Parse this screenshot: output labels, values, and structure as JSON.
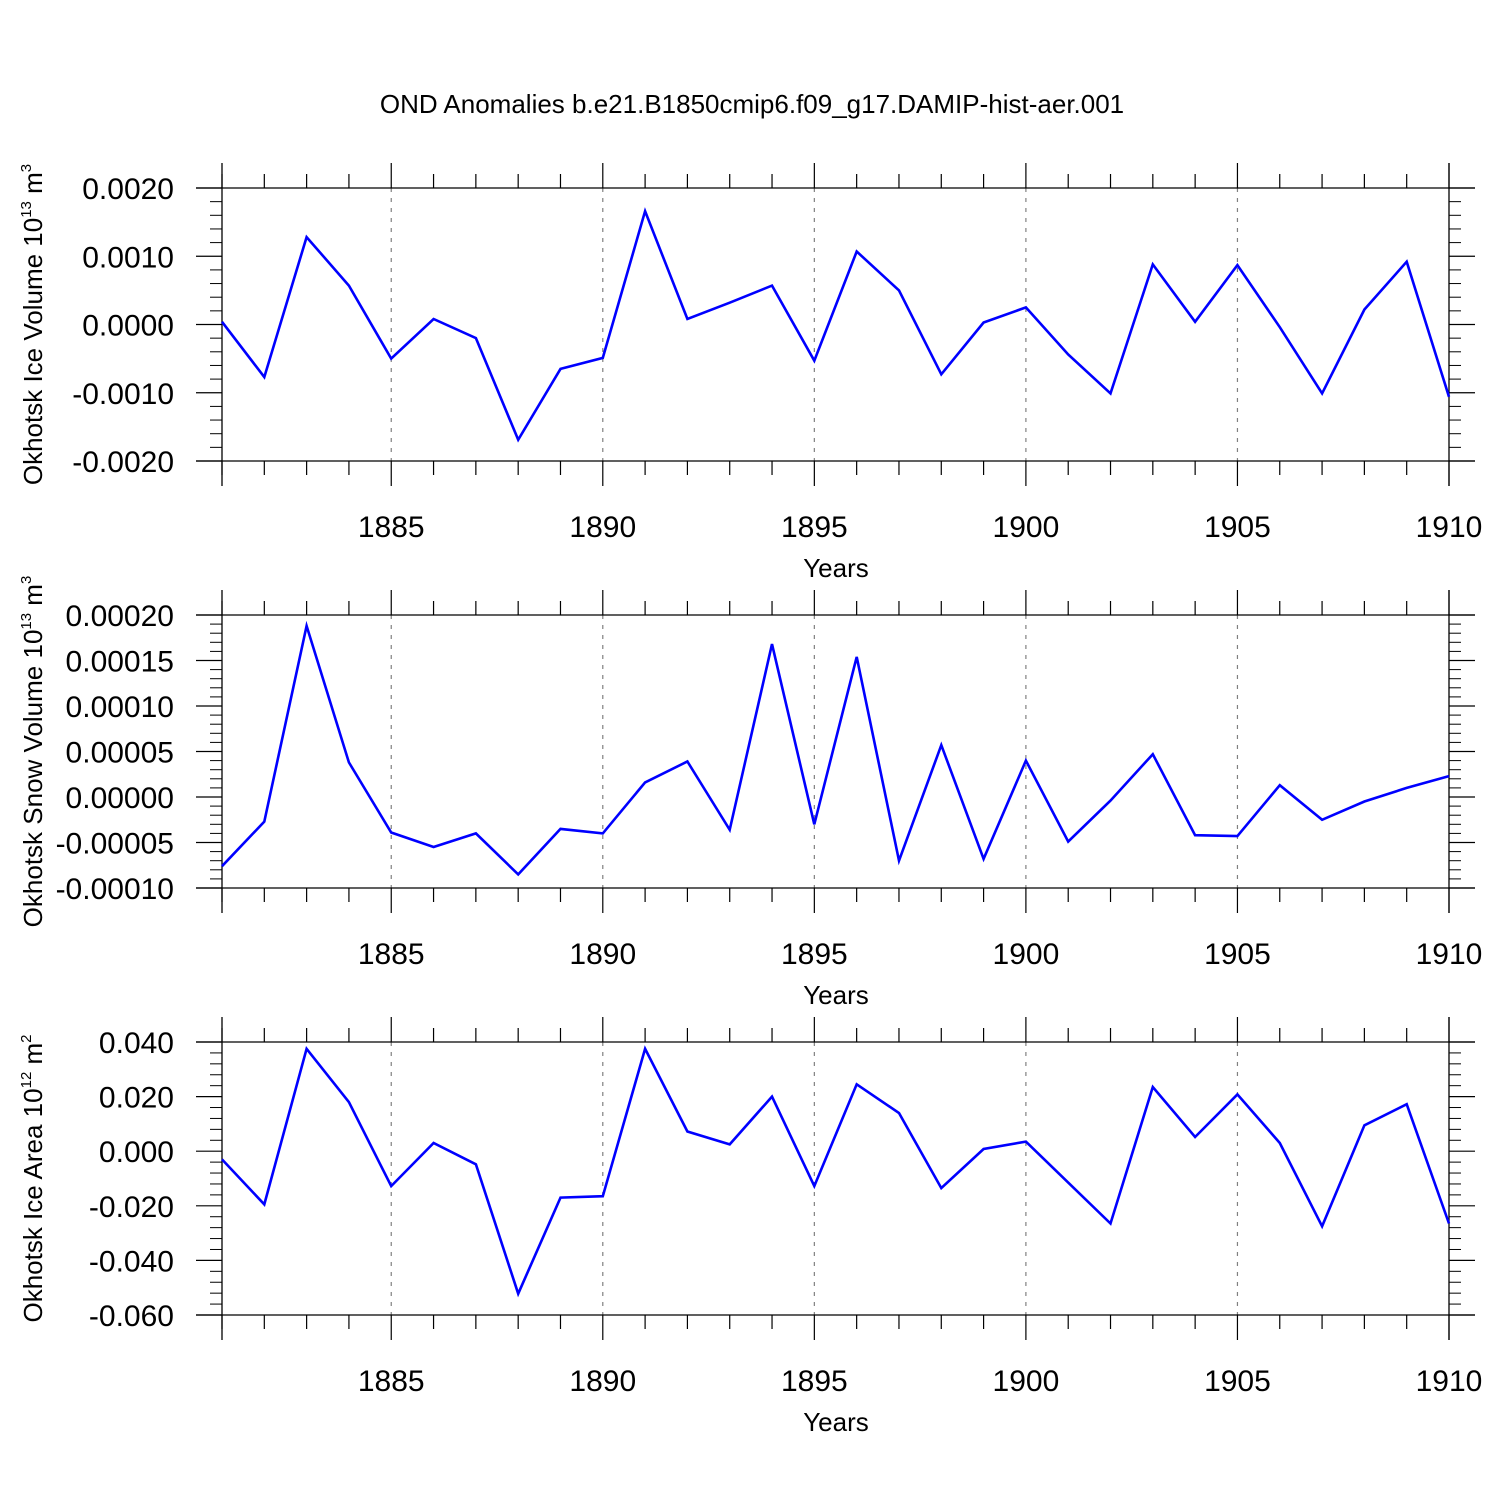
{
  "title": "OND Anomalies b.e21.B1850cmip6.f09_g17.DAMIP-hist-aer.001",
  "colors": {
    "line": "#0000ff",
    "axis": "#000000",
    "grid": "#808080"
  },
  "chart_data": [
    {
      "type": "line",
      "ylabel": {
        "text": "Okhotsk Ice Volume 10",
        "exponent": "13",
        "unit": " m",
        "unit_exponent": "3"
      },
      "xlabel": "Years",
      "xlim": [
        1881,
        1910
      ],
      "ylim": [
        -0.002,
        0.002
      ],
      "x_ticks": [
        "1885",
        "1890",
        "1895",
        "1900",
        "1905",
        "1910"
      ],
      "y_ticks": [
        "0.0020",
        "0.0010",
        "0.0000",
        "-0.0010",
        "-0.0020"
      ],
      "x": [
        1881,
        1882,
        1883,
        1884,
        1885,
        1886,
        1887,
        1888,
        1889,
        1890,
        1891,
        1892,
        1893,
        1894,
        1895,
        1896,
        1897,
        1898,
        1899,
        1900,
        1901,
        1902,
        1903,
        1904,
        1905,
        1906,
        1907,
        1908,
        1909,
        1910
      ],
      "series": [
        {
          "values": [
            4e-05,
            -0.00077,
            0.00128,
            0.00057,
            -0.0005,
            8e-05,
            -0.0002,
            -0.00169,
            -0.00065,
            -0.00049,
            0.00166,
            8e-05,
            0.00032,
            0.00057,
            -0.00053,
            0.00107,
            0.0005,
            -0.00073,
            3e-05,
            0.00025,
            -0.00044,
            -0.00101,
            0.00088,
            4e-05,
            0.00087,
            -4e-05,
            -0.00101,
            0.00022,
            0.00092,
            -0.00106
          ]
        }
      ]
    },
    {
      "type": "line",
      "ylabel": {
        "text": "Okhotsk Snow Volume 10",
        "exponent": "13",
        "unit": " m",
        "unit_exponent": "3"
      },
      "xlabel": "Years",
      "xlim": [
        1881,
        1910
      ],
      "ylim": [
        -0.0001,
        0.0002
      ],
      "x_ticks": [
        "1885",
        "1890",
        "1895",
        "1900",
        "1905",
        "1910"
      ],
      "y_ticks": [
        "0.00020",
        "0.00015",
        "0.00010",
        "0.00005",
        "0.00000",
        "-0.00005",
        "-0.00010"
      ],
      "x": [
        1881,
        1882,
        1883,
        1884,
        1885,
        1886,
        1887,
        1888,
        1889,
        1890,
        1891,
        1892,
        1893,
        1894,
        1895,
        1896,
        1897,
        1898,
        1899,
        1900,
        1901,
        1902,
        1903,
        1904,
        1905,
        1906,
        1907,
        1908,
        1909,
        1910
      ],
      "series": [
        {
          "values": [
            -7.6e-05,
            -2.7e-05,
            0.000188,
            3.8e-05,
            -3.9e-05,
            -5.5e-05,
            -4e-05,
            -8.5e-05,
            -3.5e-05,
            -4e-05,
            1.6e-05,
            3.9e-05,
            -3.6e-05,
            0.000168,
            -3e-05,
            0.000154,
            -7e-05,
            5.7e-05,
            -6.8e-05,
            4e-05,
            -4.9e-05,
            -4e-06,
            4.7e-05,
            -4.2e-05,
            -4.3e-05,
            1.3e-05,
            -2.5e-05,
            -5e-06,
            1e-05,
            2.3e-05
          ]
        }
      ]
    },
    {
      "type": "line",
      "ylabel": {
        "text": "Okhotsk Ice Area 10",
        "exponent": "12",
        "unit": " m",
        "unit_exponent": "2"
      },
      "xlabel": "Years",
      "xlim": [
        1881,
        1910
      ],
      "ylim": [
        -0.06,
        0.04
      ],
      "x_ticks": [
        "1885",
        "1890",
        "1895",
        "1900",
        "1905",
        "1910"
      ],
      "y_ticks": [
        "0.040",
        "0.020",
        "0.000",
        "-0.020",
        "-0.040",
        "-0.060"
      ],
      "x": [
        1881,
        1882,
        1883,
        1884,
        1885,
        1886,
        1887,
        1888,
        1889,
        1890,
        1891,
        1892,
        1893,
        1894,
        1895,
        1896,
        1897,
        1898,
        1899,
        1900,
        1901,
        1902,
        1903,
        1904,
        1905,
        1906,
        1907,
        1908,
        1909,
        1910
      ],
      "series": [
        {
          "values": [
            -0.003,
            -0.0195,
            0.0375,
            0.018,
            -0.0128,
            0.003,
            -0.0048,
            -0.0522,
            -0.017,
            -0.0165,
            0.0375,
            0.0072,
            0.0025,
            0.02,
            -0.0128,
            0.0245,
            0.014,
            -0.0135,
            0.0008,
            0.0035,
            -0.0115,
            -0.0265,
            0.0235,
            0.0052,
            0.0208,
            0.003,
            -0.0275,
            0.0095,
            0.0172,
            -0.0265
          ]
        }
      ]
    }
  ]
}
